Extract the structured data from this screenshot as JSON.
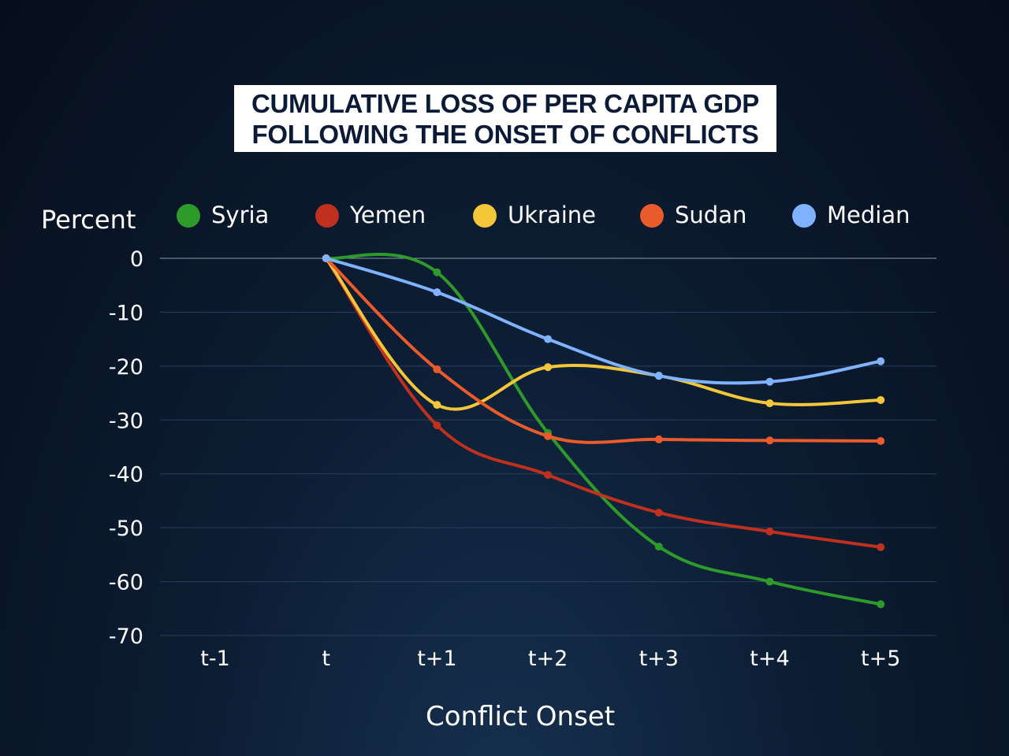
{
  "chart_data": {
    "type": "line",
    "title": [
      "CUMULATIVE LOSS OF PER CAPITA GDP",
      "FOLLOWING THE ONSET OF CONFLICTS"
    ],
    "ylabel": "Percent",
    "xlabel": "Conflict Onset",
    "categories": [
      "t-1",
      "t",
      "t+1",
      "t+2",
      "t+3",
      "t+4",
      "t+5"
    ],
    "ylim": [
      -70,
      0
    ],
    "yticks": [
      0,
      -10,
      -20,
      -30,
      -40,
      -50,
      -60,
      -70
    ],
    "grid": true,
    "legend_placement": "top",
    "series": [
      {
        "name": "Syria",
        "color": "#2e9a2a",
        "values": [
          null,
          0,
          -2.6,
          -32.4,
          -53.5,
          -60,
          -64.2
        ]
      },
      {
        "name": "Yemen",
        "color": "#c0301f",
        "values": [
          null,
          0,
          -31,
          -40.2,
          -47.2,
          -50.7,
          -53.6
        ]
      },
      {
        "name": "Ukraine",
        "color": "#f4c63a",
        "values": [
          null,
          0,
          -27.2,
          -20.2,
          -21.8,
          -26.9,
          -26.3
        ]
      },
      {
        "name": "Sudan",
        "color": "#ea5a2a",
        "values": [
          null,
          0,
          -20.6,
          -33,
          -33.6,
          -33.8,
          -33.9
        ]
      },
      {
        "name": "Median",
        "color": "#7fb2ff",
        "values": [
          null,
          0,
          -6.3,
          -15,
          -21.8,
          -22.9,
          -19.1
        ]
      }
    ]
  }
}
